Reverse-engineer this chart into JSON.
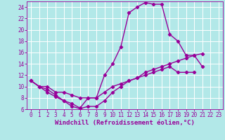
{
  "xlabel": "Windchill (Refroidissement éolien,°C)",
  "background_color": "#b2e8e8",
  "grid_color": "#ffffff",
  "line_color": "#990099",
  "marker": "D",
  "marker_size": 2.2,
  "line_width": 1.0,
  "xlim": [
    -0.5,
    23.5
  ],
  "ylim": [
    6,
    25
  ],
  "xticks": [
    0,
    1,
    2,
    3,
    4,
    5,
    6,
    7,
    8,
    9,
    10,
    11,
    12,
    13,
    14,
    15,
    16,
    17,
    18,
    19,
    20,
    21,
    22,
    23
  ],
  "yticks": [
    6,
    8,
    10,
    12,
    14,
    16,
    18,
    20,
    22,
    24
  ],
  "s1_x": [
    0,
    1,
    2,
    3,
    4,
    5,
    6,
    7,
    8,
    9,
    10,
    11,
    12,
    13,
    14,
    15,
    16,
    17,
    18,
    19,
    20,
    21
  ],
  "s1_y": [
    11,
    10,
    9,
    8.2,
    7.5,
    7,
    6.2,
    8,
    8,
    12,
    14,
    17,
    23,
    24,
    24.8,
    24.5,
    24.5,
    19.2,
    18,
    15.5,
    15.5,
    13.5
  ],
  "s2_x": [
    0,
    1,
    2,
    3,
    4,
    5,
    6,
    7,
    8,
    9,
    10,
    11,
    12,
    13,
    14,
    15,
    16,
    17,
    18,
    19,
    20,
    21,
    22,
    23
  ],
  "s2_y": [
    11,
    10,
    9.5,
    8.5,
    7.5,
    6.5,
    6.1,
    6.5,
    6.5,
    7.5,
    9,
    10,
    11,
    11.5,
    12.5,
    13,
    13.5,
    14,
    14.5,
    15,
    15.5,
    15.8,
    null,
    null
  ],
  "s3_x": [
    0,
    1,
    2,
    3,
    4,
    5,
    6,
    7,
    8,
    9,
    10,
    11,
    12,
    13,
    14,
    15,
    16,
    17,
    18,
    19,
    20,
    21,
    22,
    23
  ],
  "s3_y": [
    11,
    10,
    10,
    9,
    9,
    8.5,
    8,
    8,
    8,
    9,
    10,
    10.5,
    11,
    11.5,
    12,
    12.5,
    13,
    13.5,
    12.5,
    12.5,
    12.5,
    null,
    null,
    null
  ],
  "tick_fontsize": 5.5,
  "xlabel_fontsize": 6.5
}
